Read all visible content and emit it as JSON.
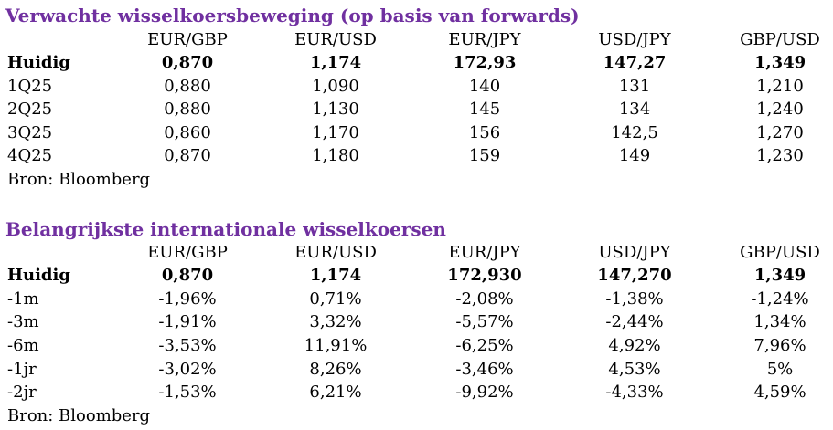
{
  "forwards": {
    "title": "Verwachte wisselkoersbeweging (op basis van forwards)",
    "headers": [
      "EUR/GBP",
      "EUR/USD",
      "EUR/JPY",
      "USD/JPY",
      "GBP/USD"
    ],
    "rows": [
      {
        "label": "Huidig",
        "values": [
          "0,870",
          "1,174",
          "172,93",
          "147,27",
          "1,349"
        ]
      },
      {
        "label": "1Q25",
        "values": [
          "0,880",
          "1,090",
          "140",
          "131",
          "1,210"
        ]
      },
      {
        "label": "2Q25",
        "values": [
          "0,880",
          "1,130",
          "145",
          "134",
          "1,240"
        ]
      },
      {
        "label": "3Q25",
        "values": [
          "0,860",
          "1,170",
          "156",
          "142,5",
          "1,270"
        ]
      },
      {
        "label": "4Q25",
        "values": [
          "0,870",
          "1,180",
          "159",
          "149",
          "1,230"
        ]
      }
    ],
    "source": "Bron: Bloomberg"
  },
  "rates": {
    "title": "Belangrijkste internationale wisselkoersen",
    "headers": [
      "EUR/GBP",
      "EUR/USD",
      "EUR/JPY",
      "USD/JPY",
      "GBP/USD"
    ],
    "rows": [
      {
        "label": "Huidig",
        "values": [
          "0,870",
          "1,174",
          "172,930",
          "147,270",
          "1,349"
        ]
      },
      {
        "label": "-1m",
        "values": [
          "-1,96%",
          "0,71%",
          "-2,08%",
          "-1,38%",
          "-1,24%"
        ]
      },
      {
        "label": "-3m",
        "values": [
          "-1,91%",
          "3,32%",
          "-5,57%",
          "-2,44%",
          "1,34%"
        ]
      },
      {
        "label": "-6m",
        "values": [
          "-3,53%",
          "11,91%",
          "-6,25%",
          "4,92%",
          "7,96%"
        ]
      },
      {
        "label": "-1jr",
        "values": [
          "-3,02%",
          "8,26%",
          "-3,46%",
          "4,53%",
          "5%"
        ]
      },
      {
        "label": "-2jr",
        "values": [
          "-1,53%",
          "6,21%",
          "-9,92%",
          "-4,33%",
          "4,59%"
        ]
      }
    ],
    "source": "Bron: Bloomberg"
  },
  "colors": {
    "title": "#7030a0",
    "text": "#000000",
    "background": "#ffffff"
  }
}
